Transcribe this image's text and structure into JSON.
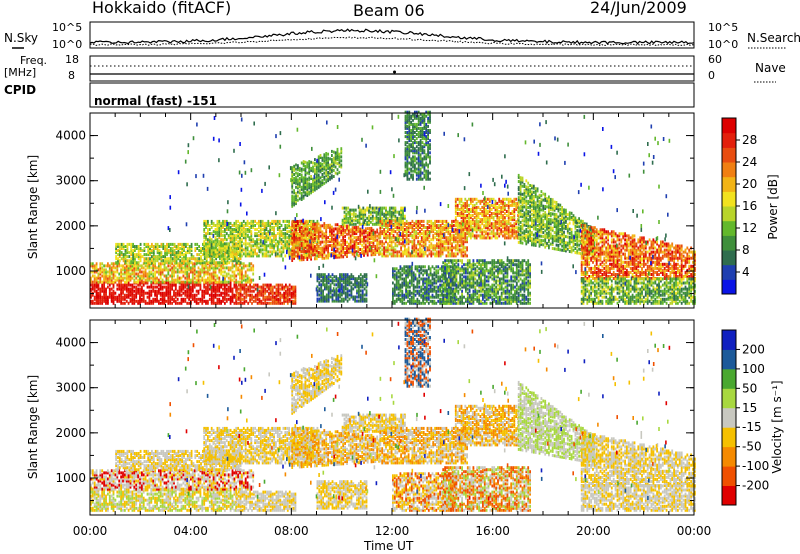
{
  "header": {
    "radar": "Hokkaido (fitACF)",
    "beam": "Beam 06",
    "date": "24/Jun/2009"
  },
  "strips": {
    "nsky_label": "N.Sky",
    "nsearch_label": "N.Search",
    "noise_ticks": [
      "10^5",
      "10^0"
    ],
    "freq_label": "Freq.",
    "freq_unit": "[MHz]",
    "freq_ticks": [
      "18",
      "8"
    ],
    "nave_label": "Nave",
    "nave_ticks": [
      "60",
      "0"
    ],
    "cpid_label": "CPID",
    "cpid_value": "normal (fast) -151"
  },
  "colors": {
    "power": [
      "#0a14e6",
      "#1f3fb0",
      "#2f6d4e",
      "#3f8f3b",
      "#63b82c",
      "#b8d42a",
      "#f2e21f",
      "#f2b416",
      "#f07f12",
      "#e84d10",
      "#e3200c",
      "#dd0000"
    ],
    "velocity": [
      "#e00000",
      "#f05000",
      "#f58a00",
      "#f5c000",
      "#c8c8c0",
      "#a8d840",
      "#4aa830",
      "#1c5a9a",
      "#1020c0"
    ]
  },
  "chart_data": [
    {
      "type": "heatmap",
      "title": "Power",
      "ylabel": "Slant Range [km]",
      "xlabel": "",
      "ylim": [
        180,
        4500
      ],
      "yticks": [
        1000,
        2000,
        3000,
        4000
      ],
      "xticks": [
        "00:00",
        "04:00",
        "08:00",
        "12:00",
        "16:00",
        "20:00",
        "00:00"
      ],
      "colorbar_label": "Power [dB]",
      "colorbar_ticks": [
        "28",
        "24",
        "20",
        "16",
        "12",
        "8",
        "4"
      ]
    },
    {
      "type": "heatmap",
      "title": "Velocity",
      "ylabel": "Slant Range [km]",
      "xlabel": "Time UT",
      "ylim": [
        180,
        4500
      ],
      "yticks": [
        1000,
        2000,
        3000,
        4000
      ],
      "xticks": [
        "00:00",
        "04:00",
        "08:00",
        "12:00",
        "16:00",
        "20:00",
        "00:00"
      ],
      "colorbar_label": "Velocity [m s⁻¹]",
      "colorbar_ticks": [
        "200",
        "100",
        "50",
        "15",
        "-15",
        "-50",
        "-100",
        "-200"
      ]
    }
  ]
}
